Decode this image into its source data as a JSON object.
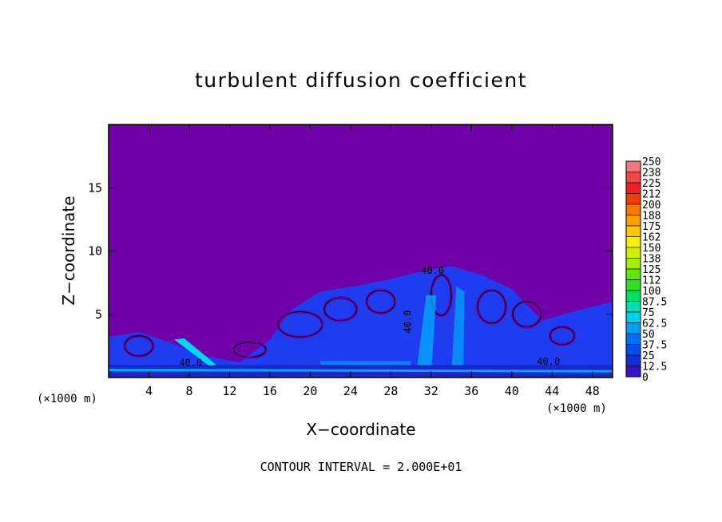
{
  "chart_data": {
    "type": "heatmap",
    "title": "turbulent diffusion coefficient",
    "xlabel": "X−coordinate",
    "ylabel": "Z−coordinate",
    "x_unit_left": "(×1000 m)",
    "x_unit_right": "(×1000 m)",
    "xlim": [
      0,
      50
    ],
    "ylim": [
      0,
      20
    ],
    "x_ticks": [
      "4",
      "8",
      "12",
      "16",
      "20",
      "24",
      "28",
      "32",
      "36",
      "40",
      "44",
      "48"
    ],
    "x_tick_values": [
      4,
      8,
      12,
      16,
      20,
      24,
      28,
      32,
      36,
      40,
      44,
      48
    ],
    "y_ticks": [
      "5",
      "10",
      "15"
    ],
    "y_tick_values": [
      5,
      10,
      15
    ],
    "contour_labels": [
      "40.0",
      "40.0",
      "40.0",
      "40.0"
    ],
    "colorbar": {
      "labels": [
        "250",
        "238",
        "225",
        "212",
        "200",
        "188",
        "175",
        "162",
        "150",
        "138",
        "125",
        "112",
        "100",
        "87.5",
        "75",
        "62.5",
        "50",
        "37.5",
        "25",
        "12.5",
        "0"
      ],
      "colors": [
        "#f07878",
        "#f04848",
        "#f02020",
        "#f04000",
        "#f87800",
        "#f8a000",
        "#f8c800",
        "#f8f000",
        "#d0f000",
        "#a0f000",
        "#60e800",
        "#30e020",
        "#00e060",
        "#00e0b0",
        "#00d0f0",
        "#00a0f8",
        "#0070f8",
        "#0050f0",
        "#1030e0",
        "#3a10c8",
        "#7000a8"
      ],
      "bands": [
        {
          "top": 250,
          "bottom": 238
        },
        {
          "top": 238,
          "bottom": 225
        },
        {
          "top": 225,
          "bottom": 212
        },
        {
          "top": 212,
          "bottom": 200
        },
        {
          "top": 200,
          "bottom": 188
        },
        {
          "top": 188,
          "bottom": 175
        },
        {
          "top": 175,
          "bottom": 162
        },
        {
          "top": 162,
          "bottom": 150
        },
        {
          "top": 150,
          "bottom": 138
        },
        {
          "top": 138,
          "bottom": 125
        },
        {
          "top": 125,
          "bottom": 112
        },
        {
          "top": 112,
          "bottom": 100
        },
        {
          "top": 100,
          "bottom": 87.5
        },
        {
          "top": 87.5,
          "bottom": 75
        },
        {
          "top": 75,
          "bottom": 62.5
        },
        {
          "top": 62.5,
          "bottom": 50
        },
        {
          "top": 50,
          "bottom": 37.5
        },
        {
          "top": 37.5,
          "bottom": 25
        },
        {
          "top": 25,
          "bottom": 12.5
        },
        {
          "top": 12.5,
          "bottom": 0
        }
      ]
    },
    "background_value": 0,
    "field_profile": [
      {
        "x": 0,
        "top": 3.2
      },
      {
        "x": 3,
        "top": 3.6
      },
      {
        "x": 6,
        "top": 2.8
      },
      {
        "x": 9,
        "top": 1.8
      },
      {
        "x": 13,
        "top": 1.2
      },
      {
        "x": 16,
        "top": 3.0
      },
      {
        "x": 18,
        "top": 5.3
      },
      {
        "x": 21,
        "top": 6.8
      },
      {
        "x": 25,
        "top": 7.3
      },
      {
        "x": 28,
        "top": 7.8
      },
      {
        "x": 31,
        "top": 8.4
      },
      {
        "x": 34,
        "top": 8.8
      },
      {
        "x": 37,
        "top": 8.1
      },
      {
        "x": 40,
        "top": 7.0
      },
      {
        "x": 43,
        "top": 4.5
      },
      {
        "x": 46,
        "top": 5.2
      },
      {
        "x": 50,
        "top": 6.0
      }
    ],
    "colors": {
      "background": "#7000a8",
      "field": "#1e3cf0",
      "field_dark": "#1a28c8",
      "highlight": "#00a8f8",
      "cyan": "#00d8f0"
    }
  },
  "footer": "CONTOUR INTERVAL = 2.000E+01"
}
